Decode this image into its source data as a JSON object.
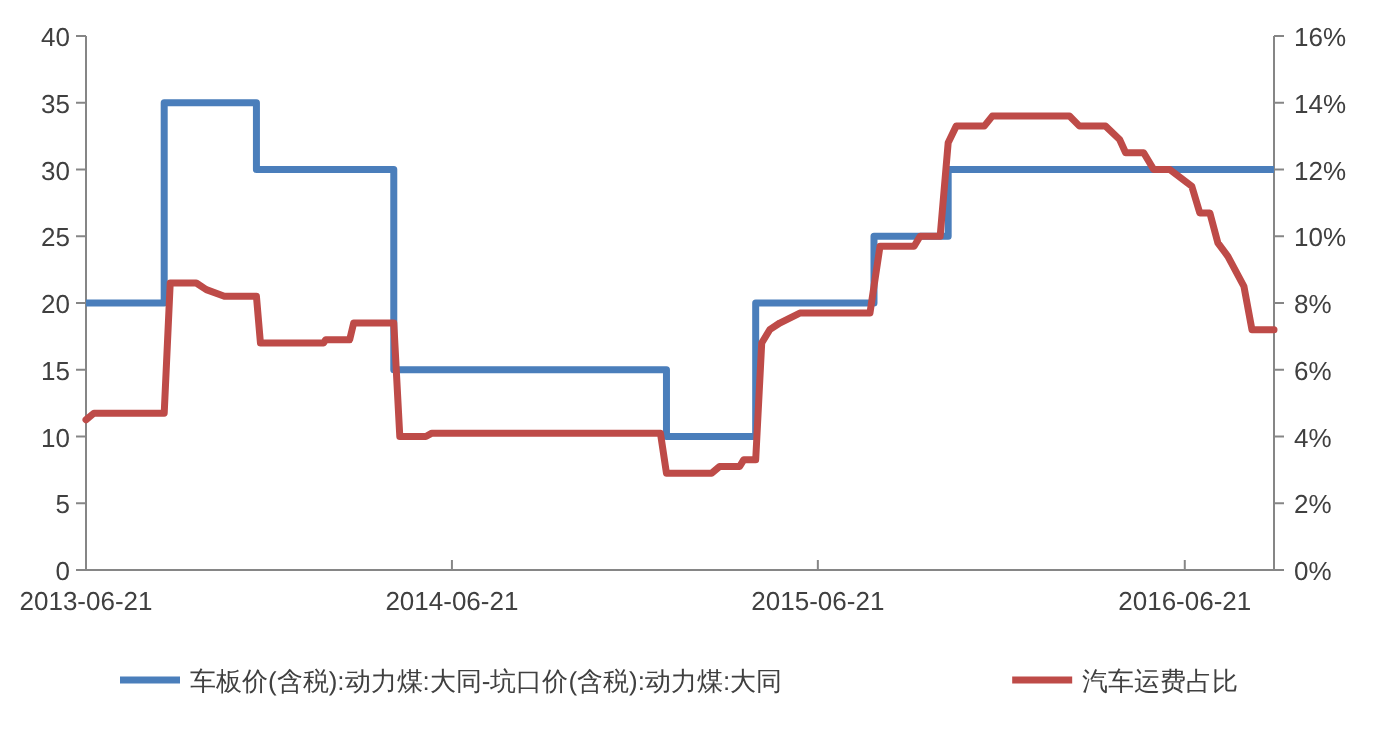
{
  "chart_data": {
    "type": "line",
    "xlim": [
      "2013-06-21",
      "2016-09-18"
    ],
    "xticks": [
      "2013-06-21",
      "2014-06-21",
      "2015-06-21",
      "2016-06-21"
    ],
    "ylim": [
      0,
      40
    ],
    "yticks": [
      0,
      5,
      10,
      15,
      20,
      25,
      30,
      35,
      40
    ],
    "y2lim": [
      0,
      16
    ],
    "y2ticks": [
      {
        "value": 0,
        "label": "0%"
      },
      {
        "value": 2,
        "label": "2%"
      },
      {
        "value": 4,
        "label": "4%"
      },
      {
        "value": 6,
        "label": "6%"
      },
      {
        "value": 8,
        "label": "8%"
      },
      {
        "value": 10,
        "label": "10%"
      },
      {
        "value": 12,
        "label": "12%"
      },
      {
        "value": 14,
        "label": "14%"
      },
      {
        "value": 16,
        "label": "16%"
      }
    ],
    "grid": false,
    "legend": "bottom",
    "marker": "none",
    "line_style": "solid",
    "series": [
      {
        "name": "车板价(含税):动力煤:大同-坑口价(含税):动力煤:大同",
        "color": "#4a7ebb",
        "type": "step",
        "x": [
          "2013-06-21",
          "2013-09-07",
          "2013-12-08",
          "2014-04-24",
          "2015-01-21",
          "2015-04-20",
          "2015-08-16",
          "2015-10-29",
          "2016-09-18"
        ],
        "values": [
          20,
          35,
          30,
          15,
          10,
          20,
          25,
          30,
          30
        ]
      },
      {
        "name": "汽车运费占比",
        "color": "#be4b48",
        "axis": "y2",
        "x": [
          "2013-06-21",
          "2013-06-29",
          "2013-09-07",
          "2013-09-13",
          "2013-10-09",
          "2013-10-19",
          "2013-11-06",
          "2013-12-08",
          "2013-12-12",
          "2014-02-13",
          "2014-02-15",
          "2014-03-11",
          "2014-03-15",
          "2014-04-24",
          "2014-04-30",
          "2014-05-26",
          "2014-06-01",
          "2015-01-15",
          "2015-01-21",
          "2015-03-07",
          "2015-03-15",
          "2015-04-04",
          "2015-04-08",
          "2015-04-20",
          "2015-04-26",
          "2015-05-04",
          "2015-05-14",
          "2015-06-03",
          "2015-08-12",
          "2015-08-22",
          "2015-09-25",
          "2015-10-01",
          "2015-10-21",
          "2015-10-29",
          "2015-11-06",
          "2015-12-04",
          "2015-12-12",
          "2016-02-27",
          "2016-03-08",
          "2016-04-03",
          "2016-04-17",
          "2016-04-23",
          "2016-05-11",
          "2016-05-21",
          "2016-06-06",
          "2016-06-28",
          "2016-07-06",
          "2016-07-16",
          "2016-07-24",
          "2016-08-03",
          "2016-08-19",
          "2016-08-27",
          "2016-09-18"
        ],
        "values": [
          4.5,
          4.7,
          4.7,
          8.6,
          8.6,
          8.4,
          8.2,
          8.2,
          6.8,
          6.8,
          6.9,
          6.9,
          7.4,
          7.4,
          4.0,
          4.0,
          4.1,
          4.1,
          2.9,
          2.9,
          3.1,
          3.1,
          3.3,
          3.3,
          6.8,
          7.2,
          7.4,
          7.7,
          7.7,
          9.7,
          9.7,
          10.0,
          10.0,
          12.8,
          13.3,
          13.3,
          13.6,
          13.6,
          13.3,
          13.3,
          12.9,
          12.5,
          12.5,
          12.0,
          12.0,
          11.5,
          10.7,
          10.7,
          9.8,
          9.4,
          8.5,
          7.2,
          7.2
        ]
      }
    ]
  }
}
